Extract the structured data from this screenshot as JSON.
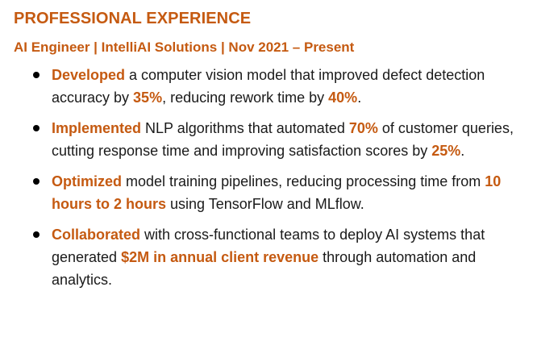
{
  "section": {
    "title": "PROFESSIONAL EXPERIENCE",
    "job_header": "AI Engineer | IntelliAI Solutions | Nov 2021 – Present"
  },
  "bullets": [
    {
      "segments": [
        {
          "text": "Developed",
          "highlight": true
        },
        {
          "text": " a computer vision model that improved defect detection accuracy by ",
          "highlight": false
        },
        {
          "text": "35%",
          "highlight": true
        },
        {
          "text": ", reducing rework time by ",
          "highlight": false
        },
        {
          "text": "40%",
          "highlight": true
        },
        {
          "text": ".",
          "highlight": false
        }
      ]
    },
    {
      "segments": [
        {
          "text": "Implemented",
          "highlight": true
        },
        {
          "text": " NLP algorithms that automated ",
          "highlight": false
        },
        {
          "text": "70%",
          "highlight": true
        },
        {
          "text": " of customer queries, cutting response time and improving satisfaction scores by ",
          "highlight": false
        },
        {
          "text": "25%",
          "highlight": true
        },
        {
          "text": ".",
          "highlight": false
        }
      ]
    },
    {
      "segments": [
        {
          "text": "Optimized",
          "highlight": true
        },
        {
          "text": " model training pipelines, reducing processing time from ",
          "highlight": false
        },
        {
          "text": "10 hours to 2 hours",
          "highlight": true
        },
        {
          "text": " using TensorFlow and MLflow.",
          "highlight": false
        }
      ]
    },
    {
      "segments": [
        {
          "text": "Collaborated",
          "highlight": true
        },
        {
          "text": " with cross-functional teams to deploy AI systems that generated ",
          "highlight": false
        },
        {
          "text": "$2M in annual client revenue",
          "highlight": true
        },
        {
          "text": " through automation and analytics.",
          "highlight": false
        }
      ]
    }
  ],
  "colors": {
    "accent": "#c55a11",
    "text": "#1a1a1a",
    "background": "#ffffff"
  }
}
